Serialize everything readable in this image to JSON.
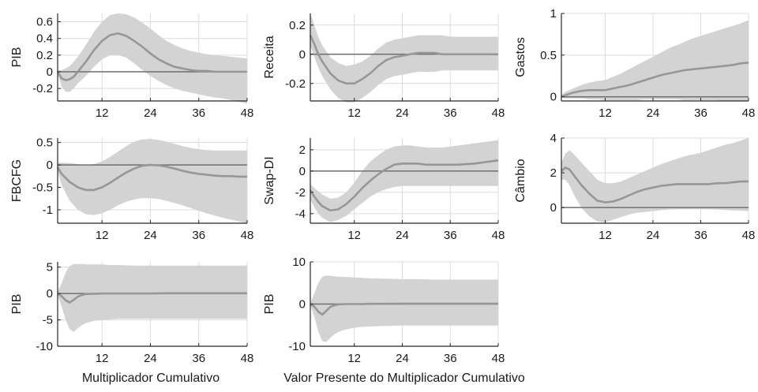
{
  "chart_data": [
    {
      "type": "area",
      "ylabel": "PIB",
      "ylim": [
        -0.35,
        0.7
      ],
      "yticks": [
        -0.2,
        0,
        0.2,
        0.4,
        0.6
      ],
      "xlim": [
        1,
        48
      ],
      "xticks": [
        12,
        24,
        36,
        48
      ],
      "grid": true,
      "xlabel": "",
      "x": [
        1,
        2,
        3,
        4,
        5,
        6,
        8,
        10,
        12,
        14,
        16,
        18,
        20,
        22,
        24,
        26,
        28,
        30,
        32,
        34,
        36,
        38,
        40,
        42,
        44,
        46,
        48
      ],
      "mean": [
        0.0,
        -0.08,
        -0.1,
        -0.09,
        -0.06,
        0.0,
        0.12,
        0.26,
        0.37,
        0.44,
        0.46,
        0.43,
        0.37,
        0.3,
        0.22,
        0.15,
        0.1,
        0.06,
        0.04,
        0.02,
        0.01,
        0.01,
        0.0,
        0.0,
        0.0,
        0.0,
        0.0
      ],
      "lower": [
        -0.02,
        -0.18,
        -0.24,
        -0.24,
        -0.2,
        -0.14,
        -0.05,
        0.06,
        0.15,
        0.2,
        0.2,
        0.17,
        0.1,
        0.02,
        -0.05,
        -0.11,
        -0.16,
        -0.2,
        -0.23,
        -0.25,
        -0.27,
        -0.29,
        -0.31,
        -0.32,
        -0.34,
        -0.36,
        -0.38
      ],
      "upper": [
        0.02,
        0.02,
        0.04,
        0.07,
        0.12,
        0.18,
        0.32,
        0.48,
        0.6,
        0.68,
        0.7,
        0.69,
        0.65,
        0.59,
        0.52,
        0.44,
        0.37,
        0.32,
        0.28,
        0.25,
        0.23,
        0.21,
        0.2,
        0.19,
        0.18,
        0.17,
        0.16
      ]
    },
    {
      "type": "area",
      "ylabel": "Receita",
      "ylim": [
        -0.32,
        0.28
      ],
      "yticks": [
        -0.2,
        0,
        0.2
      ],
      "xlim": [
        1,
        48
      ],
      "xticks": [
        12,
        24,
        36,
        48
      ],
      "grid": true,
      "xlabel": "",
      "x": [
        1,
        2,
        3,
        4,
        6,
        8,
        10,
        12,
        14,
        16,
        18,
        20,
        22,
        24,
        26,
        28,
        30,
        32,
        34,
        36,
        38,
        40,
        42,
        44,
        46,
        48
      ],
      "mean": [
        0.13,
        0.07,
        0.0,
        -0.05,
        -0.13,
        -0.18,
        -0.2,
        -0.2,
        -0.17,
        -0.13,
        -0.08,
        -0.04,
        -0.02,
        -0.01,
        0.0,
        0.01,
        0.01,
        0.01,
        0.0,
        0.0,
        0.0,
        0.0,
        0.0,
        0.0,
        0.0,
        0.0
      ],
      "lower": [
        0.06,
        -0.02,
        -0.09,
        -0.15,
        -0.24,
        -0.3,
        -0.33,
        -0.33,
        -0.3,
        -0.26,
        -0.21,
        -0.17,
        -0.15,
        -0.14,
        -0.13,
        -0.12,
        -0.12,
        -0.12,
        -0.11,
        -0.11,
        -0.11,
        -0.11,
        -0.11,
        -0.11,
        -0.11,
        -0.11
      ],
      "upper": [
        0.28,
        0.2,
        0.12,
        0.06,
        -0.02,
        -0.06,
        -0.08,
        -0.07,
        -0.05,
        -0.01,
        0.04,
        0.08,
        0.1,
        0.11,
        0.12,
        0.13,
        0.13,
        0.13,
        0.13,
        0.12,
        0.12,
        0.12,
        0.12,
        0.12,
        0.12,
        0.12
      ]
    },
    {
      "type": "area",
      "ylabel": "Gastos",
      "ylim": [
        -0.05,
        1.0
      ],
      "yticks": [
        0,
        0.5,
        1
      ],
      "xlim": [
        1,
        48
      ],
      "xticks": [
        12,
        24,
        36,
        48
      ],
      "grid": true,
      "xlabel": "",
      "x": [
        1,
        2,
        4,
        6,
        8,
        10,
        12,
        14,
        16,
        18,
        20,
        22,
        24,
        26,
        28,
        30,
        32,
        34,
        36,
        38,
        40,
        42,
        44,
        46,
        48
      ],
      "mean": [
        0.0,
        0.02,
        0.05,
        0.07,
        0.08,
        0.08,
        0.08,
        0.1,
        0.12,
        0.14,
        0.17,
        0.2,
        0.23,
        0.26,
        0.28,
        0.3,
        0.32,
        0.33,
        0.34,
        0.35,
        0.36,
        0.37,
        0.38,
        0.4,
        0.41
      ],
      "lower": [
        -0.01,
        -0.02,
        -0.02,
        -0.02,
        -0.03,
        -0.03,
        -0.04,
        -0.04,
        -0.04,
        -0.04,
        -0.04,
        -0.03,
        -0.03,
        -0.03,
        -0.03,
        -0.03,
        -0.04,
        -0.04,
        -0.04,
        -0.04,
        -0.04,
        -0.05,
        -0.05,
        -0.05,
        -0.05
      ],
      "upper": [
        0.02,
        0.06,
        0.1,
        0.14,
        0.17,
        0.19,
        0.2,
        0.24,
        0.28,
        0.33,
        0.38,
        0.43,
        0.48,
        0.53,
        0.58,
        0.62,
        0.66,
        0.7,
        0.73,
        0.76,
        0.79,
        0.82,
        0.85,
        0.88,
        0.92
      ]
    },
    {
      "type": "area",
      "ylabel": "FBCFG",
      "ylim": [
        -1.3,
        0.6
      ],
      "yticks": [
        -1,
        -0.5,
        0,
        0.5
      ],
      "xlim": [
        1,
        48
      ],
      "xticks": [
        12,
        24,
        36,
        48
      ],
      "grid": true,
      "xlabel": "",
      "x": [
        1,
        2,
        4,
        6,
        8,
        10,
        12,
        14,
        16,
        18,
        20,
        22,
        24,
        26,
        28,
        30,
        32,
        34,
        36,
        38,
        40,
        42,
        44,
        46,
        48
      ],
      "mean": [
        -0.05,
        -0.2,
        -0.38,
        -0.5,
        -0.56,
        -0.56,
        -0.5,
        -0.4,
        -0.28,
        -0.17,
        -0.08,
        -0.02,
        0.0,
        -0.01,
        -0.04,
        -0.08,
        -0.13,
        -0.17,
        -0.2,
        -0.22,
        -0.24,
        -0.25,
        -0.25,
        -0.26,
        -0.26
      ],
      "lower": [
        -0.15,
        -0.45,
        -0.8,
        -1.0,
        -1.1,
        -1.12,
        -1.08,
        -1.0,
        -0.9,
        -0.82,
        -0.77,
        -0.74,
        -0.74,
        -0.76,
        -0.8,
        -0.85,
        -0.9,
        -0.96,
        -1.02,
        -1.08,
        -1.13,
        -1.18,
        -1.22,
        -1.26,
        -1.3
      ],
      "upper": [
        0.05,
        0.05,
        0.04,
        0.02,
        0.0,
        0.02,
        0.08,
        0.18,
        0.3,
        0.42,
        0.52,
        0.57,
        0.58,
        0.56,
        0.52,
        0.47,
        0.42,
        0.38,
        0.35,
        0.33,
        0.32,
        0.32,
        0.32,
        0.32,
        0.32
      ]
    },
    {
      "type": "area",
      "ylabel": "Swap-DI",
      "ylim": [
        -4.9,
        3.1
      ],
      "yticks": [
        -4,
        -2,
        0,
        2
      ],
      "xlim": [
        1,
        48
      ],
      "xticks": [
        12,
        24,
        36,
        48
      ],
      "grid": true,
      "xlabel": "",
      "x": [
        1,
        2,
        3,
        4,
        6,
        8,
        10,
        12,
        14,
        16,
        18,
        20,
        22,
        24,
        26,
        28,
        30,
        32,
        34,
        36,
        38,
        40,
        42,
        44,
        46,
        48
      ],
      "mean": [
        -1.8,
        -2.4,
        -2.9,
        -3.3,
        -3.7,
        -3.6,
        -3.1,
        -2.4,
        -1.6,
        -0.9,
        -0.3,
        0.2,
        0.6,
        0.7,
        0.7,
        0.7,
        0.6,
        0.6,
        0.6,
        0.6,
        0.6,
        0.65,
        0.7,
        0.8,
        0.9,
        1.0
      ],
      "lower": [
        -2.7,
        -3.4,
        -4.0,
        -4.4,
        -4.8,
        -4.6,
        -4.2,
        -3.6,
        -3.0,
        -2.4,
        -2.0,
        -1.7,
        -1.5,
        -1.4,
        -1.4,
        -1.4,
        -1.4,
        -1.4,
        -1.4,
        -1.4,
        -1.4,
        -1.4,
        -1.4,
        -1.4,
        -1.4,
        -1.4
      ],
      "upper": [
        -1.2,
        -1.6,
        -1.9,
        -2.2,
        -2.6,
        -2.5,
        -2.0,
        -1.1,
        0.0,
        0.9,
        1.5,
        2.0,
        2.3,
        2.4,
        2.4,
        2.3,
        2.2,
        2.2,
        2.2,
        2.3,
        2.4,
        2.5,
        2.6,
        2.7,
        2.8,
        2.9
      ]
    },
    {
      "type": "area",
      "ylabel": "Câmbio",
      "ylim": [
        -0.9,
        4.0
      ],
      "yticks": [
        0,
        2,
        4
      ],
      "xlim": [
        1,
        48
      ],
      "xticks": [
        12,
        24,
        36,
        48
      ],
      "grid": true,
      "xlabel": "",
      "x": [
        1,
        2,
        3,
        4,
        6,
        8,
        10,
        12,
        14,
        16,
        18,
        20,
        22,
        24,
        26,
        28,
        30,
        32,
        34,
        36,
        38,
        40,
        42,
        44,
        46,
        48
      ],
      "mean": [
        2.1,
        2.3,
        2.2,
        1.9,
        1.3,
        0.8,
        0.4,
        0.3,
        0.35,
        0.5,
        0.7,
        0.9,
        1.05,
        1.15,
        1.25,
        1.3,
        1.35,
        1.35,
        1.35,
        1.35,
        1.35,
        1.4,
        1.4,
        1.45,
        1.5,
        1.5
      ],
      "lower": [
        1.6,
        1.6,
        1.3,
        0.8,
        0.0,
        -0.5,
        -0.8,
        -0.85,
        -0.7,
        -0.55,
        -0.4,
        -0.3,
        -0.25,
        -0.2,
        -0.15,
        -0.12,
        -0.1,
        -0.1,
        -0.1,
        -0.1,
        -0.1,
        -0.12,
        -0.14,
        -0.16,
        -0.18,
        -0.2
      ],
      "upper": [
        2.6,
        3.1,
        3.3,
        3.1,
        2.6,
        2.1,
        1.6,
        1.4,
        1.4,
        1.5,
        1.7,
        1.9,
        2.1,
        2.3,
        2.5,
        2.65,
        2.8,
        2.95,
        3.05,
        3.15,
        3.3,
        3.45,
        3.6,
        3.7,
        3.85,
        4.0
      ]
    },
    {
      "type": "area",
      "ylabel": "PIB",
      "ylim": [
        -10,
        6
      ],
      "yticks": [
        -10,
        -5,
        0,
        5
      ],
      "xlim": [
        1,
        48
      ],
      "xticks": [
        12,
        24,
        36,
        48
      ],
      "grid": true,
      "xlabel": "Multiplicador Cumulativo",
      "x": [
        1,
        2,
        3,
        4,
        5,
        6,
        7,
        8,
        10,
        12,
        14,
        16,
        20,
        24,
        28,
        32,
        36,
        40,
        44,
        48
      ],
      "mean": [
        0.0,
        -0.5,
        -1.3,
        -1.7,
        -1.2,
        -0.6,
        -0.3,
        -0.1,
        -0.05,
        0.0,
        0.0,
        0.0,
        0.0,
        0.0,
        0.05,
        0.05,
        0.05,
        0.05,
        0.05,
        0.05
      ],
      "lower": [
        -0.3,
        -2.5,
        -5.0,
        -6.8,
        -7.3,
        -6.6,
        -6.0,
        -5.6,
        -5.2,
        -5.0,
        -4.9,
        -4.8,
        -4.8,
        -4.8,
        -4.8,
        -4.8,
        -4.8,
        -4.8,
        -4.8,
        -4.8
      ],
      "upper": [
        0.3,
        2.0,
        4.0,
        5.2,
        5.6,
        5.6,
        5.6,
        5.5,
        5.5,
        5.5,
        5.4,
        5.4,
        5.3,
        5.3,
        5.3,
        5.3,
        5.3,
        5.3,
        5.3,
        5.3
      ]
    },
    {
      "type": "area",
      "ylabel": "PIB",
      "ylim": [
        -10,
        10
      ],
      "yticks": [
        -10,
        0,
        10
      ],
      "xlim": [
        1,
        48
      ],
      "xticks": [
        12,
        24,
        36,
        48
      ],
      "grid": true,
      "xlabel": "Valor Presente do Multiplicador Cumulativo",
      "x": [
        1,
        2,
        3,
        4,
        5,
        6,
        7,
        8,
        10,
        12,
        14,
        16,
        20,
        24,
        28,
        32,
        36,
        40,
        44,
        48
      ],
      "mean": [
        0.0,
        -0.6,
        -1.8,
        -2.5,
        -1.6,
        -0.7,
        -0.3,
        -0.1,
        0.0,
        0.0,
        0.0,
        0.05,
        0.05,
        0.1,
        0.1,
        0.1,
        0.1,
        0.1,
        0.1,
        0.1
      ],
      "lower": [
        -0.3,
        -3.0,
        -6.5,
        -8.8,
        -9.0,
        -8.0,
        -7.2,
        -6.6,
        -6.0,
        -5.6,
        -5.4,
        -5.3,
        -5.2,
        -5.1,
        -5.1,
        -5.1,
        -5.1,
        -5.1,
        -5.1,
        -5.1
      ],
      "upper": [
        0.3,
        2.5,
        5.0,
        6.5,
        6.8,
        6.7,
        6.6,
        6.5,
        6.4,
        6.3,
        6.2,
        6.1,
        6.0,
        5.9,
        5.9,
        5.8,
        5.8,
        5.8,
        5.8,
        5.8
      ]
    }
  ]
}
